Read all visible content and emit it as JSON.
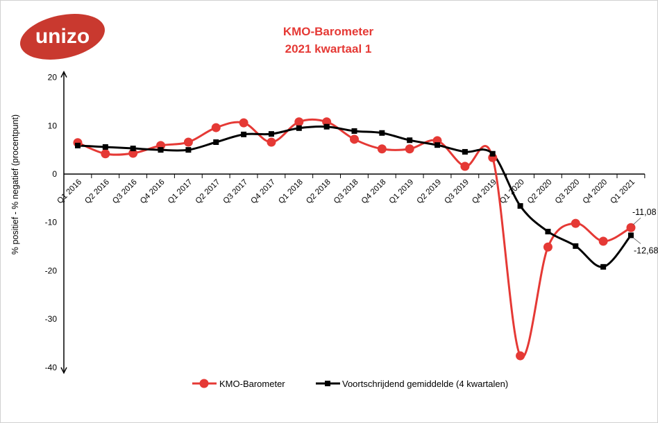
{
  "logo": {
    "text": "unizo",
    "color": "#c9392f"
  },
  "chart_data": {
    "type": "line",
    "title": "KMO-Barometer",
    "subtitle": "2021 kwartaal 1",
    "ylabel": "% positief - % negatief (procentpunt)",
    "xlabel": "",
    "ylim": [
      -40,
      20
    ],
    "yticks": [
      20,
      10,
      0,
      -10,
      -20,
      -30,
      -40
    ],
    "grid": false,
    "legend": "bottom",
    "categories": [
      "Q1 2016",
      "Q2 2016",
      "Q3 2016",
      "Q4 2016",
      "Q1 2017",
      "Q2 2017",
      "Q3 2017",
      "Q4 2017",
      "Q1 2018",
      "Q2 2018",
      "Q3 2018",
      "Q4 2018",
      "Q1 2019",
      "Q2 2019",
      "Q3 2019",
      "Q4 2019",
      "Q1 2020",
      "Q2 2020",
      "Q3 2020",
      "Q4 2020",
      "Q1 2021"
    ],
    "series": [
      {
        "name": "KMO-Barometer",
        "color": "#e53935",
        "marker": "circle",
        "values": [
          6.5,
          4.2,
          4.3,
          5.9,
          6.6,
          9.6,
          10.6,
          6.6,
          10.8,
          10.8,
          7.2,
          5.2,
          5.2,
          6.9,
          1.6,
          3.4,
          -37.6,
          -15.1,
          -10.2,
          -13.9,
          -11.08
        ],
        "last_label": "-11,08"
      },
      {
        "name": "Voortschrijdend gemiddelde (4 kwartalen)",
        "color": "#000000",
        "marker": "square",
        "values": [
          5.9,
          5.6,
          5.3,
          5.0,
          5.0,
          6.6,
          8.2,
          8.3,
          9.5,
          9.8,
          8.9,
          8.5,
          7.0,
          6.0,
          4.6,
          4.2,
          -6.6,
          -11.9,
          -14.9,
          -19.2,
          -12.68
        ],
        "last_label": "-12,68"
      }
    ]
  }
}
